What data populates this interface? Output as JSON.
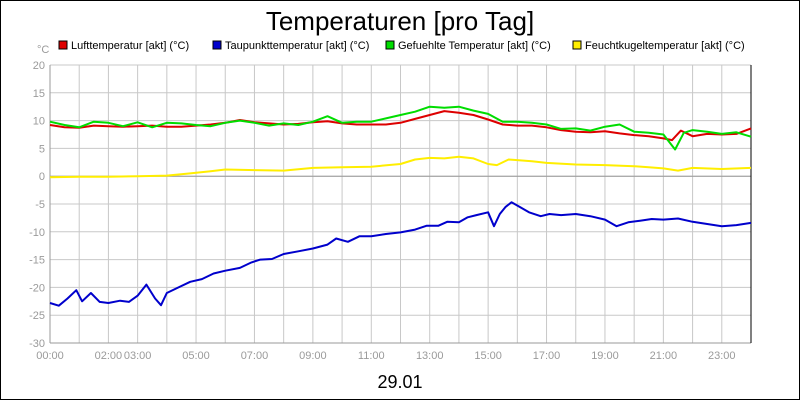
{
  "chart_data": {
    "type": "line",
    "title": "Temperaturen [pro Tag]",
    "y_unit": "°C",
    "date_label": "29.01",
    "ylim": [
      -30,
      20
    ],
    "yticks": [
      20,
      15,
      10,
      5,
      0,
      -5,
      -10,
      -15,
      -20,
      -25,
      -30
    ],
    "xlim": [
      0,
      24
    ],
    "xticks": [
      {
        "h": 0,
        "label": "00:00"
      },
      {
        "h": 2,
        "label": "02:00"
      },
      {
        "h": 3,
        "label": "03:00"
      },
      {
        "h": 5,
        "label": "05:00"
      },
      {
        "h": 7,
        "label": "07:00"
      },
      {
        "h": 9,
        "label": "09:00"
      },
      {
        "h": 11,
        "label": "11:00"
      },
      {
        "h": 13,
        "label": "13:00"
      },
      {
        "h": 15,
        "label": "15:00"
      },
      {
        "h": 17,
        "label": "17:00"
      },
      {
        "h": 19,
        "label": "19:00"
      },
      {
        "h": 21,
        "label": "21:00"
      },
      {
        "h": 23,
        "label": "23:00"
      }
    ],
    "grid": true,
    "legend_position": "top",
    "series": [
      {
        "name": "Lufttemperatur [akt] (°C)",
        "color": "#dd0000",
        "points": [
          [
            0,
            9.2
          ],
          [
            0.5,
            8.8
          ],
          [
            1,
            8.7
          ],
          [
            1.5,
            9.1
          ],
          [
            2,
            9.0
          ],
          [
            2.5,
            8.9
          ],
          [
            3,
            9.0
          ],
          [
            3.5,
            9.1
          ],
          [
            4,
            8.9
          ],
          [
            4.5,
            8.9
          ],
          [
            5,
            9.1
          ],
          [
            5.5,
            9.3
          ],
          [
            6,
            9.6
          ],
          [
            6.5,
            10.1
          ],
          [
            7,
            9.7
          ],
          [
            7.5,
            9.5
          ],
          [
            8,
            9.3
          ],
          [
            8.5,
            9.4
          ],
          [
            9,
            9.7
          ],
          [
            9.5,
            9.9
          ],
          [
            10,
            9.5
          ],
          [
            10.5,
            9.3
          ],
          [
            11,
            9.3
          ],
          [
            11.5,
            9.3
          ],
          [
            12,
            9.6
          ],
          [
            12.5,
            10.3
          ],
          [
            13,
            11.0
          ],
          [
            13.5,
            11.7
          ],
          [
            14,
            11.4
          ],
          [
            14.5,
            11.0
          ],
          [
            15,
            10.2
          ],
          [
            15.5,
            9.3
          ],
          [
            16,
            9.1
          ],
          [
            16.5,
            9.1
          ],
          [
            17,
            8.8
          ],
          [
            17.5,
            8.3
          ],
          [
            18,
            8.0
          ],
          [
            18.5,
            7.9
          ],
          [
            19,
            8.1
          ],
          [
            19.5,
            7.7
          ],
          [
            20,
            7.4
          ],
          [
            20.5,
            7.2
          ],
          [
            21,
            6.8
          ],
          [
            21.3,
            6.5
          ],
          [
            21.6,
            8.2
          ],
          [
            22,
            7.2
          ],
          [
            22.5,
            7.6
          ],
          [
            23,
            7.5
          ],
          [
            23.5,
            7.6
          ],
          [
            24,
            8.6
          ]
        ]
      },
      {
        "name": "Taupunkttemperatur [akt] (°C)",
        "color": "#0000cc",
        "points": [
          [
            0,
            -22.8
          ],
          [
            0.3,
            -23.3
          ],
          [
            0.6,
            -22.0
          ],
          [
            0.9,
            -20.5
          ],
          [
            1.1,
            -22.5
          ],
          [
            1.4,
            -21.0
          ],
          [
            1.7,
            -22.6
          ],
          [
            2,
            -22.8
          ],
          [
            2.4,
            -22.4
          ],
          [
            2.7,
            -22.6
          ],
          [
            3,
            -21.5
          ],
          [
            3.3,
            -19.5
          ],
          [
            3.6,
            -22.0
          ],
          [
            3.8,
            -23.2
          ],
          [
            4.0,
            -21.0
          ],
          [
            4.4,
            -20.0
          ],
          [
            4.8,
            -19.0
          ],
          [
            5.2,
            -18.5
          ],
          [
            5.6,
            -17.5
          ],
          [
            6,
            -17.0
          ],
          [
            6.5,
            -16.5
          ],
          [
            6.9,
            -15.5
          ],
          [
            7.2,
            -15.0
          ],
          [
            7.6,
            -14.9
          ],
          [
            8,
            -14.0
          ],
          [
            8.5,
            -13.5
          ],
          [
            9,
            -13.0
          ],
          [
            9.5,
            -12.3
          ],
          [
            9.8,
            -11.2
          ],
          [
            10.2,
            -11.8
          ],
          [
            10.6,
            -10.8
          ],
          [
            11,
            -10.8
          ],
          [
            11.5,
            -10.4
          ],
          [
            12,
            -10.1
          ],
          [
            12.5,
            -9.6
          ],
          [
            12.9,
            -8.9
          ],
          [
            13.3,
            -8.9
          ],
          [
            13.6,
            -8.2
          ],
          [
            14.0,
            -8.3
          ],
          [
            14.3,
            -7.4
          ],
          [
            14.6,
            -7.0
          ],
          [
            15.0,
            -6.5
          ],
          [
            15.2,
            -9.0
          ],
          [
            15.4,
            -6.8
          ],
          [
            15.6,
            -5.5
          ],
          [
            15.8,
            -4.7
          ],
          [
            16.1,
            -5.6
          ],
          [
            16.4,
            -6.5
          ],
          [
            16.8,
            -7.2
          ],
          [
            17.1,
            -6.8
          ],
          [
            17.5,
            -7.0
          ],
          [
            18,
            -6.8
          ],
          [
            18.5,
            -7.2
          ],
          [
            19,
            -7.8
          ],
          [
            19.4,
            -9.0
          ],
          [
            19.8,
            -8.3
          ],
          [
            20.2,
            -8.0
          ],
          [
            20.6,
            -7.7
          ],
          [
            21,
            -7.8
          ],
          [
            21.5,
            -7.6
          ],
          [
            22,
            -8.2
          ],
          [
            22.5,
            -8.6
          ],
          [
            23,
            -9.0
          ],
          [
            23.5,
            -8.8
          ],
          [
            24,
            -8.4
          ]
        ]
      },
      {
        "name": "Gefuehlte Temperatur [akt] (°C)",
        "color": "#00dd00",
        "points": [
          [
            0,
            9.8
          ],
          [
            0.5,
            9.2
          ],
          [
            1,
            8.8
          ],
          [
            1.5,
            9.8
          ],
          [
            2,
            9.6
          ],
          [
            2.5,
            9.0
          ],
          [
            3,
            9.7
          ],
          [
            3.5,
            8.8
          ],
          [
            4,
            9.6
          ],
          [
            4.5,
            9.5
          ],
          [
            5,
            9.2
          ],
          [
            5.5,
            9.0
          ],
          [
            6,
            9.6
          ],
          [
            6.5,
            10.0
          ],
          [
            7,
            9.6
          ],
          [
            7.5,
            9.1
          ],
          [
            8,
            9.5
          ],
          [
            8.5,
            9.2
          ],
          [
            9,
            9.8
          ],
          [
            9.5,
            10.8
          ],
          [
            10,
            9.6
          ],
          [
            10.5,
            9.8
          ],
          [
            11,
            9.8
          ],
          [
            11.5,
            10.4
          ],
          [
            12,
            11.0
          ],
          [
            12.5,
            11.6
          ],
          [
            13,
            12.5
          ],
          [
            13.5,
            12.3
          ],
          [
            14,
            12.5
          ],
          [
            14.5,
            11.8
          ],
          [
            15,
            11.2
          ],
          [
            15.5,
            9.8
          ],
          [
            16,
            9.8
          ],
          [
            16.5,
            9.6
          ],
          [
            17,
            9.3
          ],
          [
            17.5,
            8.5
          ],
          [
            18,
            8.6
          ],
          [
            18.5,
            8.2
          ],
          [
            19,
            8.9
          ],
          [
            19.5,
            9.3
          ],
          [
            20,
            8.0
          ],
          [
            20.5,
            7.8
          ],
          [
            21,
            7.5
          ],
          [
            21.4,
            4.8
          ],
          [
            21.7,
            7.8
          ],
          [
            22,
            8.3
          ],
          [
            22.5,
            8.0
          ],
          [
            23,
            7.6
          ],
          [
            23.5,
            7.9
          ],
          [
            24,
            7.1
          ]
        ]
      },
      {
        "name": "Feuchtkugeltemperatur [akt] (°C)",
        "color": "#ffee00",
        "points": [
          [
            0,
            -0.2
          ],
          [
            1,
            -0.1
          ],
          [
            2,
            -0.1
          ],
          [
            3,
            0.0
          ],
          [
            4,
            0.1
          ],
          [
            4.8,
            0.5
          ],
          [
            5.5,
            0.9
          ],
          [
            6,
            1.2
          ],
          [
            7,
            1.1
          ],
          [
            8,
            1.0
          ],
          [
            9,
            1.5
          ],
          [
            10,
            1.6
          ],
          [
            11,
            1.7
          ],
          [
            12,
            2.2
          ],
          [
            12.5,
            3.0
          ],
          [
            13,
            3.3
          ],
          [
            13.5,
            3.2
          ],
          [
            14,
            3.5
          ],
          [
            14.5,
            3.2
          ],
          [
            15,
            2.2
          ],
          [
            15.3,
            2.0
          ],
          [
            15.7,
            3.0
          ],
          [
            16,
            2.9
          ],
          [
            16.5,
            2.7
          ],
          [
            17,
            2.4
          ],
          [
            18,
            2.1
          ],
          [
            19,
            2.0
          ],
          [
            20,
            1.8
          ],
          [
            20.5,
            1.6
          ],
          [
            21,
            1.4
          ],
          [
            21.5,
            1.0
          ],
          [
            22,
            1.5
          ],
          [
            23,
            1.3
          ],
          [
            24,
            1.5
          ]
        ]
      }
    ]
  }
}
